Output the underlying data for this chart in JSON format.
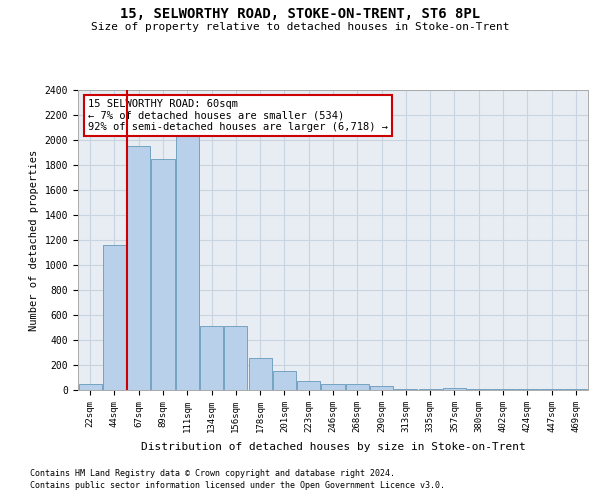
{
  "title": "15, SELWORTHY ROAD, STOKE-ON-TRENT, ST6 8PL",
  "subtitle": "Size of property relative to detached houses in Stoke-on-Trent",
  "xlabel": "Distribution of detached houses by size in Stoke-on-Trent",
  "ylabel": "Number of detached properties",
  "categories": [
    "22sqm",
    "44sqm",
    "67sqm",
    "89sqm",
    "111sqm",
    "134sqm",
    "156sqm",
    "178sqm",
    "201sqm",
    "223sqm",
    "246sqm",
    "268sqm",
    "290sqm",
    "313sqm",
    "335sqm",
    "357sqm",
    "380sqm",
    "402sqm",
    "424sqm",
    "447sqm",
    "469sqm"
  ],
  "values": [
    50,
    1160,
    1950,
    1850,
    2050,
    510,
    510,
    260,
    155,
    75,
    45,
    45,
    35,
    10,
    10,
    20,
    10,
    10,
    10,
    10,
    10
  ],
  "bar_color": "#b8d0ea",
  "bar_edge_color": "#6699bb",
  "bar_face_alpha": 0.6,
  "grid_color": "#c8d4e0",
  "bg_color": "#e8edf4",
  "annotation_text": "15 SELWORTHY ROAD: 60sqm\n← 7% of detached houses are smaller (534)\n92% of semi-detached houses are larger (6,718) →",
  "annotation_box_color": "#ffffff",
  "annotation_box_edge_color": "#cc0000",
  "vline_x": 1.5,
  "vline_color": "#cc0000",
  "ylim": [
    0,
    2400
  ],
  "yticks": [
    0,
    200,
    400,
    600,
    800,
    1000,
    1200,
    1400,
    1600,
    1800,
    2000,
    2200,
    2400
  ],
  "footnote1": "Contains HM Land Registry data © Crown copyright and database right 2024.",
  "footnote2": "Contains public sector information licensed under the Open Government Licence v3.0."
}
